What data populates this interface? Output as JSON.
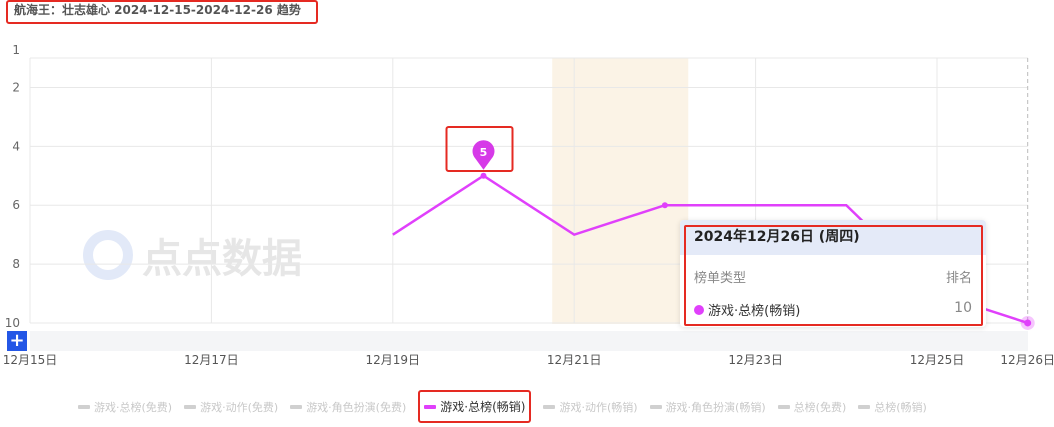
{
  "title": "航海王：壮志雄心 2024-12-15-2024-12-26 趋势",
  "watermark": "点点数据",
  "chart_data": {
    "type": "line",
    "title": "航海王：壮志雄心 2024-12-15-2024-12-26 趋势",
    "x": [
      "12-15",
      "12-16",
      "12-17",
      "12-18",
      "12-19",
      "12-20",
      "12-21",
      "12-22",
      "12-23",
      "12-24",
      "12-25",
      "12-26"
    ],
    "x_tick_labels": [
      "12月15日",
      "12月17日",
      "12月19日",
      "12月21日",
      "12月23日",
      "12月25日",
      "12月26日"
    ],
    "y_tick_labels": [
      "1",
      "2",
      "4",
      "6",
      "8",
      "10"
    ],
    "ylim": [
      1,
      10
    ],
    "y_inverted": true,
    "grid": true,
    "series": [
      {
        "name": "游戏·总榜(畅销)",
        "color": "#e040fb",
        "values": [
          null,
          null,
          null,
          null,
          7,
          5,
          7,
          6,
          6,
          6,
          9,
          10
        ]
      }
    ],
    "marker": {
      "x": "12-20",
      "value": 5,
      "label": "5"
    },
    "highlight_band": [
      "12-21",
      "12-22"
    ],
    "legend_position": "bottom"
  },
  "tooltip": {
    "date": "2024年12月26日 (周四)",
    "col_type": "榜单类型",
    "col_rank": "排名",
    "row_name": "游戏·总榜(畅销)",
    "row_value": "10",
    "row_color": "#e040fb"
  },
  "legend": [
    {
      "label": "游戏·总榜(免费)",
      "active": false
    },
    {
      "label": "游戏·动作(免费)",
      "active": false
    },
    {
      "label": "游戏·角色扮演(免费)",
      "active": false
    },
    {
      "label": "游戏·总榜(畅销)",
      "active": true
    },
    {
      "label": "游戏·动作(畅销)",
      "active": false
    },
    {
      "label": "游戏·角色扮演(畅销)",
      "active": false
    },
    {
      "label": "总榜(免费)",
      "active": false
    },
    {
      "label": "总榜(畅销)",
      "active": false
    }
  ],
  "zoom_button": "+"
}
